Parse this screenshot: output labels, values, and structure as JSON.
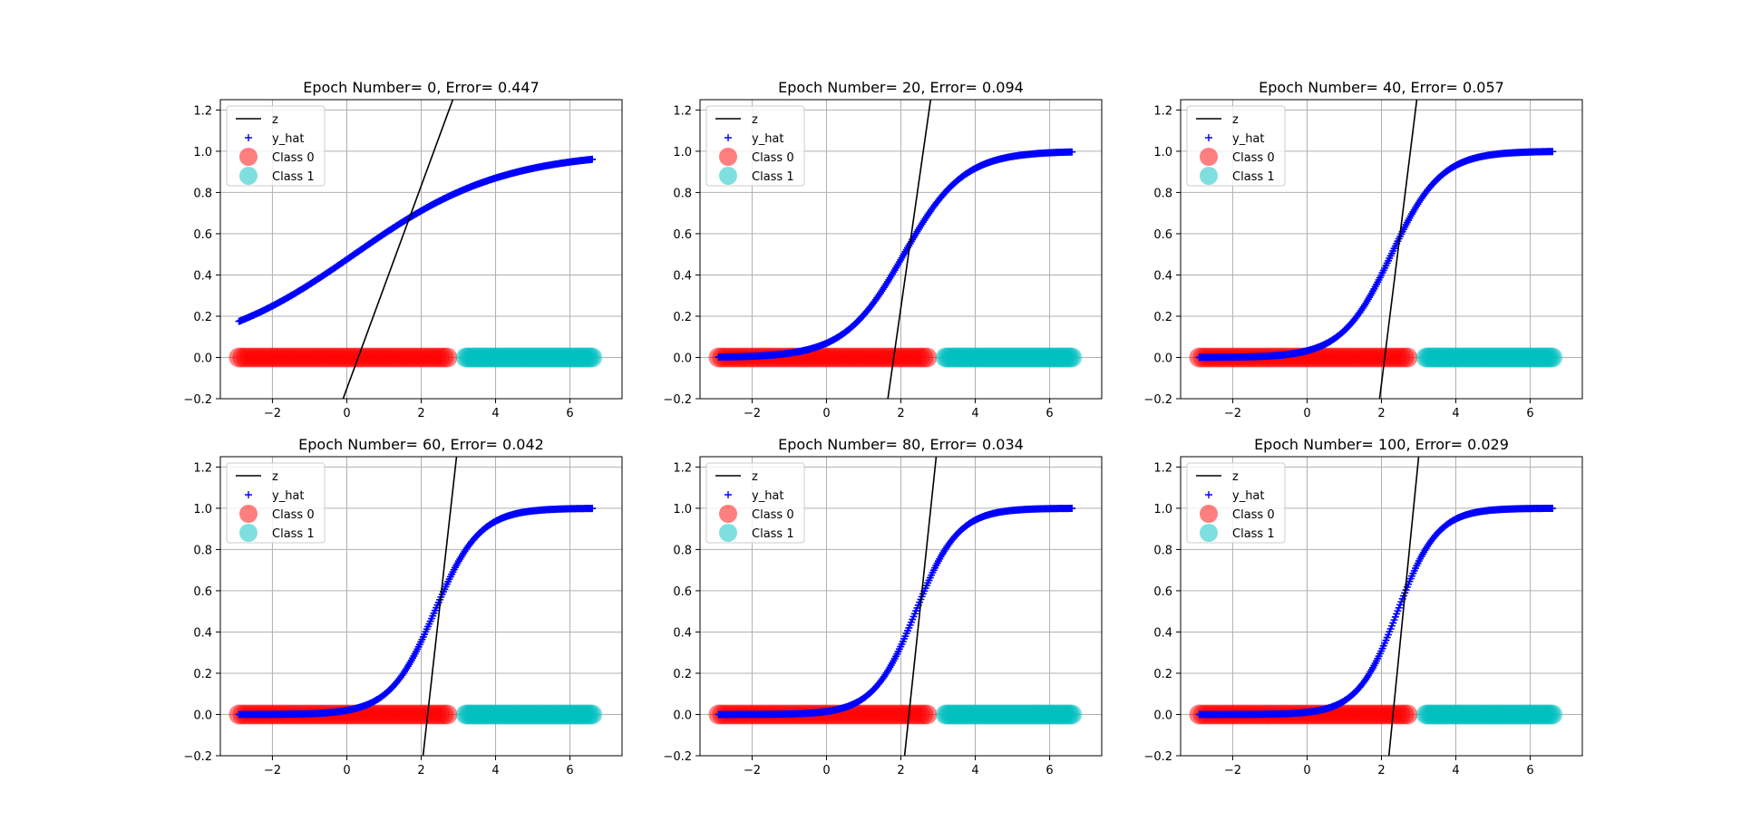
{
  "figure": {
    "background": "#ffffff"
  },
  "colors": {
    "z_line": "#000000",
    "y_hat": "#0000ff",
    "class0": "#ff0000",
    "class1": "#00bfbf",
    "grid": "#b0b0b0"
  },
  "legend_labels": [
    "z",
    "y_hat",
    "Class 0",
    "Class 1"
  ],
  "chart_data": [
    {
      "type": "scatter",
      "title": "Epoch Number= 0, Error= 0.447",
      "xlim": [
        -3.4,
        7.4
      ],
      "ylim": [
        -0.2,
        1.25
      ],
      "xticks": [
        -2,
        0,
        2,
        4,
        6
      ],
      "yticks": [
        -0.2,
        0.0,
        0.2,
        0.4,
        0.6,
        0.8,
        1.0,
        1.2
      ],
      "xtick_labels": [
        "−2",
        "0",
        "2",
        "4",
        "6"
      ],
      "ytick_labels": [
        "−0.2",
        "0.0",
        "0.2",
        "0.4",
        "0.6",
        "0.8",
        "1.0",
        "1.2"
      ],
      "grid": true,
      "legend_position": "upper-left",
      "series": [
        {
          "name": "z",
          "kind": "line",
          "x": [
            -0.1,
            2.85
          ],
          "y": [
            -0.2,
            1.25
          ]
        },
        {
          "name": "y_hat",
          "kind": "plus",
          "x_range": [
            -2.9,
            6.6
          ],
          "w": 0.5,
          "b": -0.1
        },
        {
          "name": "Class 0",
          "kind": "circle",
          "x_range": [
            -2.9,
            2.7
          ],
          "y": 0
        },
        {
          "name": "Class 1",
          "kind": "circle",
          "x_range": [
            3.2,
            6.6
          ],
          "y": 0
        }
      ]
    },
    {
      "type": "scatter",
      "title": "Epoch Number= 20, Error= 0.094",
      "xlim": [
        -3.4,
        7.4
      ],
      "ylim": [
        -0.2,
        1.25
      ],
      "xticks": [
        -2,
        0,
        2,
        4,
        6
      ],
      "yticks": [
        -0.2,
        0.0,
        0.2,
        0.4,
        0.6,
        0.8,
        1.0,
        1.2
      ],
      "xtick_labels": [
        "−2",
        "0",
        "2",
        "4",
        "6"
      ],
      "ytick_labels": [
        "−0.2",
        "0.0",
        "0.2",
        "0.4",
        "0.6",
        "0.8",
        "1.0",
        "1.2"
      ],
      "grid": true,
      "legend_position": "upper-left",
      "series": [
        {
          "name": "z",
          "kind": "line",
          "x": [
            1.65,
            2.8
          ],
          "y": [
            -0.2,
            1.25
          ]
        },
        {
          "name": "y_hat",
          "kind": "plus",
          "x_range": [
            -2.9,
            6.6
          ],
          "w": 1.25,
          "b": -2.6
        },
        {
          "name": "Class 0",
          "kind": "circle",
          "x_range": [
            -2.9,
            2.7
          ],
          "y": 0
        },
        {
          "name": "Class 1",
          "kind": "circle",
          "x_range": [
            3.2,
            6.6
          ],
          "y": 0
        }
      ]
    },
    {
      "type": "scatter",
      "title": "Epoch Number= 40, Error= 0.057",
      "xlim": [
        -3.4,
        7.4
      ],
      "ylim": [
        -0.2,
        1.25
      ],
      "xticks": [
        -2,
        0,
        2,
        4,
        6
      ],
      "yticks": [
        -0.2,
        0.0,
        0.2,
        0.4,
        0.6,
        0.8,
        1.0,
        1.2
      ],
      "xtick_labels": [
        "−2",
        "0",
        "2",
        "4",
        "6"
      ],
      "ytick_labels": [
        "−0.2",
        "0.0",
        "0.2",
        "0.4",
        "0.6",
        "0.8",
        "1.0",
        "1.2"
      ],
      "grid": true,
      "legend_position": "upper-left",
      "series": [
        {
          "name": "z",
          "kind": "line",
          "x": [
            1.95,
            2.95
          ],
          "y": [
            -0.2,
            1.25
          ]
        },
        {
          "name": "y_hat",
          "kind": "plus",
          "x_range": [
            -2.9,
            6.6
          ],
          "w": 1.5,
          "b": -3.4
        },
        {
          "name": "Class 0",
          "kind": "circle",
          "x_range": [
            -2.9,
            2.7
          ],
          "y": 0
        },
        {
          "name": "Class 1",
          "kind": "circle",
          "x_range": [
            3.2,
            6.6
          ],
          "y": 0
        }
      ]
    },
    {
      "type": "scatter",
      "title": "Epoch Number= 60, Error= 0.042",
      "xlim": [
        -3.4,
        7.4
      ],
      "ylim": [
        -0.2,
        1.25
      ],
      "xticks": [
        -2,
        0,
        2,
        4,
        6
      ],
      "yticks": [
        -0.2,
        0.0,
        0.2,
        0.4,
        0.6,
        0.8,
        1.0,
        1.2
      ],
      "xtick_labels": [
        "−2",
        "0",
        "2",
        "4",
        "6"
      ],
      "ytick_labels": [
        "−0.2",
        "0.0",
        "0.2",
        "0.4",
        "0.6",
        "0.8",
        "1.0",
        "1.2"
      ],
      "grid": true,
      "legend_position": "upper-left",
      "series": [
        {
          "name": "z",
          "kind": "line",
          "x": [
            2.05,
            2.95
          ],
          "y": [
            -0.2,
            1.25
          ]
        },
        {
          "name": "y_hat",
          "kind": "plus",
          "x_range": [
            -2.9,
            6.6
          ],
          "w": 1.65,
          "b": -3.9
        },
        {
          "name": "Class 0",
          "kind": "circle",
          "x_range": [
            -2.9,
            2.7
          ],
          "y": 0
        },
        {
          "name": "Class 1",
          "kind": "circle",
          "x_range": [
            3.2,
            6.6
          ],
          "y": 0
        }
      ]
    },
    {
      "type": "scatter",
      "title": "Epoch Number= 80, Error= 0.034",
      "xlim": [
        -3.4,
        7.4
      ],
      "ylim": [
        -0.2,
        1.25
      ],
      "xticks": [
        -2,
        0,
        2,
        4,
        6
      ],
      "yticks": [
        -0.2,
        0.0,
        0.2,
        0.4,
        0.6,
        0.8,
        1.0,
        1.2
      ],
      "xtick_labels": [
        "−2",
        "0",
        "2",
        "4",
        "6"
      ],
      "ytick_labels": [
        "−0.2",
        "0.0",
        "0.2",
        "0.4",
        "0.6",
        "0.8",
        "1.0",
        "1.2"
      ],
      "grid": true,
      "legend_position": "upper-left",
      "series": [
        {
          "name": "z",
          "kind": "line",
          "x": [
            2.1,
            2.95
          ],
          "y": [
            -0.2,
            1.25
          ]
        },
        {
          "name": "y_hat",
          "kind": "plus",
          "x_range": [
            -2.9,
            6.6
          ],
          "w": 1.75,
          "b": -4.2
        },
        {
          "name": "Class 0",
          "kind": "circle",
          "x_range": [
            -2.9,
            2.7
          ],
          "y": 0
        },
        {
          "name": "Class 1",
          "kind": "circle",
          "x_range": [
            3.2,
            6.6
          ],
          "y": 0
        }
      ]
    },
    {
      "type": "scatter",
      "title": "Epoch Number= 100, Error= 0.029",
      "xlim": [
        -3.4,
        7.4
      ],
      "ylim": [
        -0.2,
        1.25
      ],
      "xticks": [
        -2,
        0,
        2,
        4,
        6
      ],
      "yticks": [
        -0.2,
        0.0,
        0.2,
        0.4,
        0.6,
        0.8,
        1.0,
        1.2
      ],
      "xtick_labels": [
        "−2",
        "0",
        "2",
        "4",
        "6"
      ],
      "ytick_labels": [
        "−0.2",
        "0.0",
        "0.2",
        "0.4",
        "0.6",
        "0.8",
        "1.0",
        "1.2"
      ],
      "grid": true,
      "legend_position": "upper-left",
      "series": [
        {
          "name": "z",
          "kind": "line",
          "x": [
            2.2,
            3.0
          ],
          "y": [
            -0.2,
            1.25
          ]
        },
        {
          "name": "y_hat",
          "kind": "plus",
          "x_range": [
            -2.9,
            6.6
          ],
          "w": 1.85,
          "b": -4.5
        },
        {
          "name": "Class 0",
          "kind": "circle",
          "x_range": [
            -2.9,
            2.7
          ],
          "y": 0
        },
        {
          "name": "Class 1",
          "kind": "circle",
          "x_range": [
            3.2,
            6.6
          ],
          "y": 0
        }
      ]
    }
  ]
}
